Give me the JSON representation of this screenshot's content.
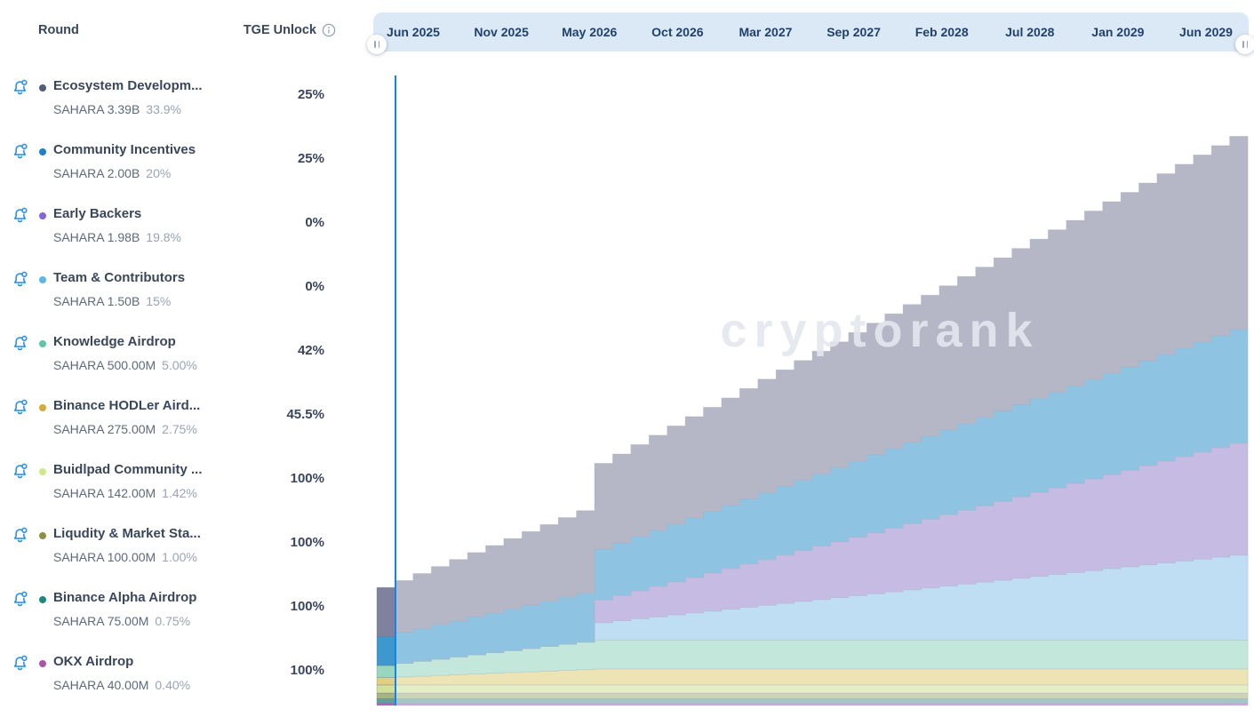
{
  "panel": {
    "header": {
      "round_label": "Round",
      "tge_unlock_label": "TGE Unlock"
    },
    "rounds": [
      {
        "name": "Ecosystem Developm...",
        "amount": "SAHARA 3.39B",
        "supply_pct": "33.9%",
        "tge_unlock": "25%",
        "dot_color": "#515e78"
      },
      {
        "name": "Community Incentives",
        "amount": "SAHARA 2.00B",
        "supply_pct": "20%",
        "tge_unlock": "25%",
        "dot_color": "#2080c8"
      },
      {
        "name": "Early Backers",
        "amount": "SAHARA 1.98B",
        "supply_pct": "19.8%",
        "tge_unlock": "0%",
        "dot_color": "#8168d6"
      },
      {
        "name": "Team & Contributors",
        "amount": "SAHARA 1.50B",
        "supply_pct": "15%",
        "tge_unlock": "0%",
        "dot_color": "#5ab7ec"
      },
      {
        "name": "Knowledge Airdrop",
        "amount": "SAHARA 500.00M",
        "supply_pct": "5.00%",
        "tge_unlock": "42%",
        "dot_color": "#5bc8a0"
      },
      {
        "name": "Binance HODLer Aird...",
        "amount": "SAHARA 275.00M",
        "supply_pct": "2.75%",
        "tge_unlock": "45.5%",
        "dot_color": "#d6a93a"
      },
      {
        "name": "Buidlpad Community ...",
        "amount": "SAHARA 142.00M",
        "supply_pct": "1.42%",
        "tge_unlock": "100%",
        "dot_color": "#cde98a"
      },
      {
        "name": "Liqudity & Market Sta...",
        "amount": "SAHARA 100.00M",
        "supply_pct": "1.00%",
        "tge_unlock": "100%",
        "dot_color": "#8d9048"
      },
      {
        "name": "Binance Alpha Airdrop",
        "amount": "SAHARA 75.00M",
        "supply_pct": "0.75%",
        "tge_unlock": "100%",
        "dot_color": "#1a8a80"
      },
      {
        "name": "OKX Airdrop",
        "amount": "SAHARA 40.00M",
        "supply_pct": "0.40%",
        "tge_unlock": "100%",
        "dot_color": "#a855a7"
      }
    ]
  },
  "timeline": {
    "labels": [
      "Jun 2025",
      "Nov 2025",
      "May 2026",
      "Oct 2026",
      "Mar 2027",
      "Sep 2027",
      "Feb 2028",
      "Jul 2028",
      "Jan 2029",
      "Jun 2029"
    ],
    "bar_color": "#dbe9f7"
  },
  "watermark": "cryptorank",
  "colors": {
    "bell_blue": "#1e88e5",
    "today_line": "#1385e8",
    "info_icon_gray": "#97a3b4"
  },
  "chart_data": {
    "type": "area",
    "subtype": "stacked-stepped-cumulative-token-unlocks",
    "title": "SAHARA token unlock schedule",
    "x_unit": "months since TGE",
    "x_range_months": [
      0,
      48
    ],
    "x_start_label": "Jun 2025",
    "x_end_label": "Jun 2029",
    "y_unit": "% of total supply unlocked (cumulative)",
    "ylim": [
      0,
      109
    ],
    "grid": false,
    "legend_position": "left-panel",
    "today_marker_month": 1,
    "step": "monthly",
    "total_at_end_pct": 100,
    "series": [
      {
        "name": "OKX Airdrop",
        "total_pct": 0.4,
        "tge_unlock_pct": 100,
        "cliff_months": 0,
        "cliff_unlock_pct_of_allocation": 0,
        "vest_end_month": 0,
        "color": "#a26ebc"
      },
      {
        "name": "Binance Alpha Airdrop",
        "total_pct": 0.75,
        "tge_unlock_pct": 100,
        "cliff_months": 0,
        "cliff_unlock_pct_of_allocation": 0,
        "vest_end_month": 0,
        "color": "#5fa09b"
      },
      {
        "name": "Liqudity & Market Sta...",
        "total_pct": 1.0,
        "tge_unlock_pct": 100,
        "cliff_months": 0,
        "cliff_unlock_pct_of_allocation": 0,
        "vest_end_month": 0,
        "color": "#a7b385"
      },
      {
        "name": "Buidlpad Community ...",
        "total_pct": 1.42,
        "tge_unlock_pct": 100,
        "cliff_months": 0,
        "cliff_unlock_pct_of_allocation": 0,
        "vest_end_month": 0,
        "color": "#d2e09b"
      },
      {
        "name": "Binance HODLer Aird...",
        "total_pct": 2.75,
        "tge_unlock_pct": 45.5,
        "cliff_months": 0,
        "cliff_unlock_pct_of_allocation": 0,
        "vest_end_month": 12,
        "color": "#e0d180"
      },
      {
        "name": "Knowledge Airdrop",
        "total_pct": 5.0,
        "tge_unlock_pct": 42,
        "cliff_months": 0,
        "cliff_unlock_pct_of_allocation": 0,
        "vest_end_month": 12,
        "color": "#98d6bf"
      },
      {
        "name": "Team & Contributors",
        "total_pct": 15.0,
        "tge_unlock_pct": 0,
        "cliff_months": 12,
        "cliff_unlock_pct_of_allocation": 20,
        "vest_end_month": 48,
        "color": "#91c6ec"
      },
      {
        "name": "Early Backers",
        "total_pct": 19.8,
        "tge_unlock_pct": 0,
        "cliff_months": 12,
        "cliff_unlock_pct_of_allocation": 20,
        "vest_end_month": 48,
        "color": "#9b8acf"
      },
      {
        "name": "Community Incentives",
        "total_pct": 20.0,
        "tge_unlock_pct": 25,
        "cliff_months": 0,
        "cliff_unlock_pct_of_allocation": 0,
        "vest_end_month": 48,
        "color": "#3e98cd"
      },
      {
        "name": "Ecosystem Development",
        "total_pct": 33.9,
        "tge_unlock_pct": 25,
        "cliff_months": 0,
        "cliff_unlock_pct_of_allocation": 0,
        "vest_end_month": 48,
        "color": "#80819d"
      }
    ]
  }
}
